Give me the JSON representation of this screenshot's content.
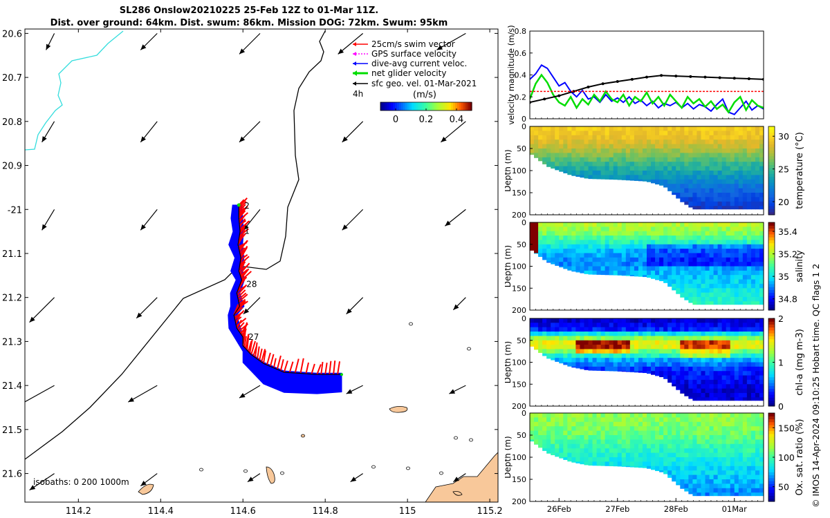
{
  "titles": {
    "line1": "SL286 Onslow20210225 25-Feb 12Z to 01-Mar 11Z.",
    "line2": "Dist. over ground: 64km. Dist. swum: 86km. Mission DOG: 72km. Swum: 95km"
  },
  "watermark": "© IMOS 14-Apr-2024 09:10:25 Hobart time. QC flags 1  2",
  "colors": {
    "swim_vector": "#ff0000",
    "gps_velocity": "#ff00ff",
    "current": "#0000ff",
    "net_velocity": "#00dd00",
    "geostrophic": "#000000",
    "coastline": "#000000",
    "isobath_200": "#33dddd",
    "land": "#f8c89a"
  },
  "chart_data": [
    {
      "type": "scatter",
      "name": "map",
      "xlabel": "",
      "ylabel": "",
      "xlim": [
        114.07,
        115.22
      ],
      "ylim": [
        -21.665,
        -20.59
      ],
      "xticks": [
        114.2,
        114.4,
        114.6,
        114.8,
        115,
        115.2
      ],
      "xtick_labels": [
        "114.2",
        "114.4",
        "114.6",
        "114.8",
        "115",
        "115.2"
      ],
      "yticks": [
        -20.6,
        -20.7,
        -20.8,
        -20.9,
        -21.0,
        -21.1,
        -21.2,
        -21.3,
        -21.4,
        -21.5,
        -21.6
      ],
      "ytick_labels": [
        "20.6",
        "20.7",
        "20.8",
        "20.9",
        "-21",
        "21.1",
        "21.2",
        "21.3",
        "21.4",
        "21.5",
        "21.6"
      ],
      "legend": {
        "placement": "top-right",
        "entries": [
          "25cm/s swim vector",
          "GPS surface velocity",
          "dive-avg current veloc.",
          "net glider velocity",
          "sfc geo. vel. 01-Mar-2021"
        ],
        "time_label": "4h"
      },
      "colorbar": {
        "label": "(m/s)",
        "ticks": [
          0,
          0.2,
          0.4
        ],
        "tick_labels": [
          "0",
          "0.2",
          "0.4"
        ],
        "range": [
          -0.1,
          0.5
        ]
      },
      "isobath_label": "isobaths: 0   200  1000m",
      "track": {
        "lon": [
          114.59,
          114.59,
          114.593,
          114.588,
          114.595,
          114.59,
          114.597,
          114.585,
          114.592,
          114.578,
          114.585,
          114.6,
          114.6,
          114.62,
          114.65,
          114.7,
          114.78,
          114.84
        ],
        "lat": [
          -20.99,
          -21.02,
          -21.05,
          -21.08,
          -21.11,
          -21.14,
          -21.16,
          -21.19,
          -21.22,
          -21.24,
          -21.27,
          -21.29,
          -21.31,
          -21.33,
          -21.35,
          -21.37,
          -21.375,
          -21.375
        ]
      },
      "day_markers": [
        {
          "label": "2",
          "lon": 114.6,
          "lat": -20.992
        },
        {
          "label": "1",
          "lon": 114.6,
          "lat": -21.049
        },
        {
          "label": "28",
          "lon": 114.605,
          "lat": -21.17
        },
        {
          "label": "27",
          "lon": 114.61,
          "lat": -21.29
        }
      ],
      "geo_vectors": {
        "lon": [
          114.15,
          114.4,
          114.65,
          114.9,
          115.15
        ],
        "lat": [
          -20.6,
          -20.8,
          -21.0,
          -21.2,
          -21.4,
          -21.6
        ],
        "u": [
          [
            -0.02,
            -0.04,
            -0.05,
            -0.06,
            -0.07
          ],
          [
            -0.03,
            -0.04,
            -0.05,
            -0.05,
            -0.06
          ],
          [
            -0.03,
            -0.04,
            -0.04,
            -0.05,
            -0.05
          ],
          [
            -0.06,
            -0.05,
            -0.04,
            -0.04,
            -0.03
          ],
          [
            -0.09,
            -0.07,
            -0.05,
            -0.04,
            -0.04
          ],
          [
            -0.06,
            -0.04,
            -0.03,
            -0.03,
            -0.03
          ]
        ],
        "v": [
          [
            -0.04,
            -0.04,
            -0.05,
            -0.05,
            -0.04
          ],
          [
            -0.05,
            -0.05,
            -0.05,
            -0.05,
            -0.05
          ],
          [
            -0.05,
            -0.05,
            -0.05,
            -0.05,
            -0.04
          ],
          [
            -0.06,
            -0.05,
            -0.04,
            -0.04,
            -0.03
          ],
          [
            -0.05,
            -0.04,
            -0.03,
            -0.02,
            -0.02
          ],
          [
            -0.04,
            -0.03,
            -0.02,
            -0.02,
            -0.02
          ]
        ]
      }
    },
    {
      "type": "line",
      "name": "velocity",
      "ylabel": "velocity magnitude (m/s)",
      "xlim": [
        25.5,
        29.5
      ],
      "ylim": [
        0,
        0.8
      ],
      "yticks": [
        0,
        0.2,
        0.4,
        0.6,
        0.8
      ],
      "series": [
        {
          "name": "dive-avg current veloc.",
          "color": "#0000ff",
          "x": [
            25.5,
            25.6,
            25.7,
            25.8,
            25.9,
            26.0,
            26.1,
            26.2,
            26.3,
            26.4,
            26.5,
            26.6,
            26.7,
            26.8,
            26.9,
            27.0,
            27.1,
            27.2,
            27.3,
            27.4,
            27.5,
            27.6,
            27.7,
            27.8,
            27.9,
            28.0,
            28.1,
            28.2,
            28.3,
            28.4,
            28.5,
            28.6,
            28.7,
            28.8,
            28.9,
            29.0,
            29.1,
            29.2,
            29.3,
            29.4,
            29.5
          ],
          "values": [
            0.36,
            0.41,
            0.49,
            0.46,
            0.38,
            0.3,
            0.33,
            0.25,
            0.2,
            0.26,
            0.18,
            0.2,
            0.15,
            0.22,
            0.16,
            0.19,
            0.15,
            0.2,
            0.14,
            0.17,
            0.12,
            0.16,
            0.1,
            0.14,
            0.12,
            0.15,
            0.1,
            0.14,
            0.09,
            0.13,
            0.11,
            0.07,
            0.13,
            0.18,
            0.06,
            0.04,
            0.1,
            0.16,
            0.08,
            0.12,
            0.09
          ]
        },
        {
          "name": "net glider velocity",
          "color": "#00dd00",
          "x": [
            25.5,
            25.6,
            25.7,
            25.8,
            25.9,
            26.0,
            26.1,
            26.2,
            26.3,
            26.4,
            26.5,
            26.6,
            26.7,
            26.8,
            26.9,
            27.0,
            27.1,
            27.2,
            27.3,
            27.4,
            27.5,
            27.6,
            27.7,
            27.8,
            27.9,
            28.0,
            28.1,
            28.2,
            28.3,
            28.4,
            28.5,
            28.6,
            28.7,
            28.8,
            28.9,
            29.0,
            29.1,
            29.2,
            29.3,
            29.4,
            29.5
          ],
          "values": [
            0.18,
            0.32,
            0.4,
            0.33,
            0.22,
            0.15,
            0.12,
            0.2,
            0.1,
            0.18,
            0.13,
            0.22,
            0.16,
            0.25,
            0.18,
            0.15,
            0.22,
            0.12,
            0.2,
            0.16,
            0.24,
            0.14,
            0.2,
            0.12,
            0.22,
            0.16,
            0.1,
            0.2,
            0.14,
            0.18,
            0.11,
            0.16,
            0.09,
            0.13,
            0.06,
            0.15,
            0.2,
            0.08,
            0.17,
            0.12,
            0.1
          ]
        },
        {
          "name": "sfc geo. vel.",
          "color": "#000000",
          "x": [
            25.5,
            25.75,
            26.0,
            26.25,
            26.5,
            26.75,
            27.0,
            27.25,
            27.5,
            27.75,
            28.0,
            28.25,
            28.5,
            28.75,
            29.0,
            29.25,
            29.5
          ],
          "values": [
            0.15,
            0.18,
            0.21,
            0.25,
            0.29,
            0.32,
            0.34,
            0.36,
            0.38,
            0.395,
            0.39,
            0.385,
            0.38,
            0.375,
            0.37,
            0.365,
            0.36
          ]
        },
        {
          "name": "25cm/s swim vector",
          "color": "#ff0000",
          "x": [
            25.5,
            29.5
          ],
          "values": [
            0.25,
            0.25
          ]
        }
      ]
    },
    {
      "type": "heatmap",
      "name": "temperature",
      "ylabel": "Depth (m)",
      "colorbar_label": "temperature (°C)",
      "xlim": [
        25.5,
        29.5
      ],
      "ylim": [
        200,
        0
      ],
      "cticks": [
        20,
        25,
        30
      ],
      "crange": [
        18,
        31.5
      ],
      "bottom_depth": {
        "x": [
          25.5,
          25.8,
          26.2,
          26.5,
          27.0,
          27.5,
          27.8,
          28.1,
          28.3,
          29.5
        ],
        "depth": [
          60,
          90,
          110,
          118,
          120,
          124,
          135,
          170,
          187,
          187
        ]
      },
      "profile": {
        "depth": [
          0,
          25,
          45,
          65,
          90,
          120,
          150,
          190
        ],
        "value": [
          29.8,
          29.3,
          28.0,
          26.5,
          24.5,
          22.5,
          20.5,
          18.5
        ]
      }
    },
    {
      "type": "heatmap",
      "name": "salinity",
      "ylabel": "Depth (m)",
      "colorbar_label": "salinity",
      "xlim": [
        25.5,
        29.5
      ],
      "ylim": [
        200,
        0
      ],
      "cticks": [
        34.8,
        35.0,
        35.2,
        35.4
      ],
      "ctick_labels": [
        "34.8",
        "35",
        "35.2",
        "35.4"
      ],
      "crange": [
        34.7,
        35.48
      ],
      "bottom_depth": {
        "x": [
          25.5,
          25.8,
          26.2,
          26.5,
          27.0,
          27.5,
          27.8,
          28.1,
          28.3,
          29.5
        ],
        "depth": [
          60,
          90,
          110,
          118,
          120,
          124,
          135,
          170,
          187,
          187
        ]
      },
      "profile": {
        "depth": [
          0,
          25,
          45,
          65,
          90,
          120,
          150,
          190
        ],
        "value": [
          35.22,
          35.15,
          35.05,
          34.95,
          34.9,
          34.95,
          35.0,
          35.05
        ]
      }
    },
    {
      "type": "heatmap",
      "name": "chl-a",
      "ylabel": "Depth (m)",
      "colorbar_label": "chl-a (mg m-3)",
      "xlim": [
        25.5,
        29.5
      ],
      "ylim": [
        200,
        0
      ],
      "cticks": [
        0,
        1,
        2
      ],
      "crange": [
        0,
        2
      ],
      "bottom_depth": {
        "x": [
          25.5,
          25.8,
          26.2,
          26.5,
          27.0,
          27.5,
          27.8,
          28.1,
          28.3,
          29.5
        ],
        "depth": [
          60,
          90,
          110,
          118,
          120,
          124,
          135,
          170,
          187,
          187
        ]
      },
      "profile": {
        "depth": [
          0,
          25,
          45,
          60,
          75,
          95,
          120,
          160
        ],
        "value": [
          0.1,
          0.3,
          1.2,
          1.6,
          1.1,
          0.6,
          0.3,
          0.15
        ]
      }
    },
    {
      "type": "heatmap",
      "name": "oxygen",
      "ylabel": "Depth (m)",
      "colorbar_label": "Ox. sat. ratio (%)",
      "xlim": [
        25.5,
        29.5
      ],
      "ylim": [
        200,
        0
      ],
      "cticks": [
        50,
        100,
        150
      ],
      "crange": [
        25,
        175
      ],
      "xticks": [
        26,
        27,
        28,
        29
      ],
      "xtick_labels": [
        "26Feb",
        "27Feb",
        "28Feb",
        "01Mar"
      ],
      "bottom_depth": {
        "x": [
          25.5,
          25.8,
          26.2,
          26.5,
          27.0,
          27.5,
          27.8,
          28.1,
          28.3,
          29.5
        ],
        "depth": [
          60,
          90,
          110,
          118,
          120,
          124,
          135,
          170,
          187,
          187
        ]
      },
      "profile": {
        "depth": [
          0,
          30,
          55,
          80,
          110,
          140,
          180
        ],
        "value": [
          115,
          112,
          105,
          95,
          85,
          75,
          65
        ]
      }
    }
  ]
}
